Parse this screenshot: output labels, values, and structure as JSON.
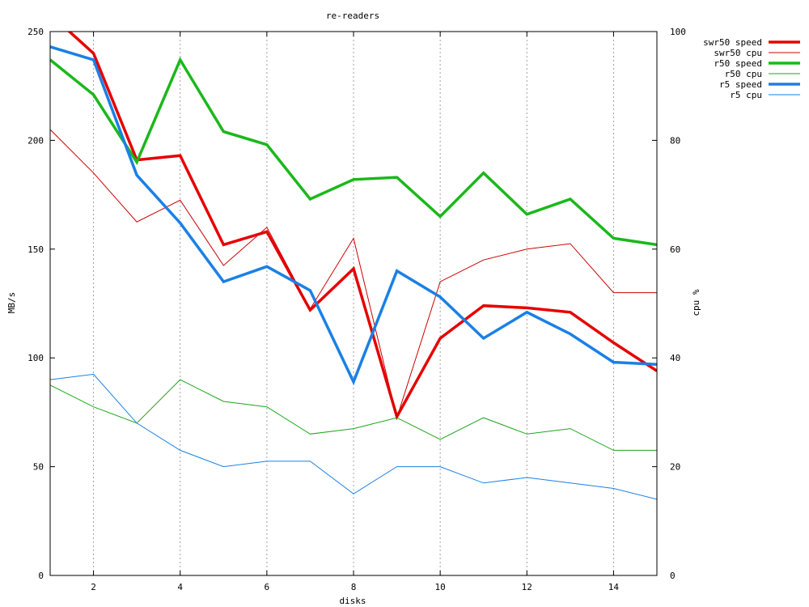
{
  "chart_data": {
    "type": "line",
    "title": "re-readers",
    "xlabel": "disks",
    "ylabel": "MB/s",
    "y2label": "cpu %",
    "xlim": [
      1,
      15
    ],
    "ylim": [
      0,
      250
    ],
    "y2lim": [
      0,
      100
    ],
    "xticks": [
      "2",
      "4",
      "6",
      "8",
      "10",
      "12",
      "14"
    ],
    "yticks": [
      "0",
      "50",
      "100",
      "150",
      "200",
      "250"
    ],
    "y2ticks": [
      "0",
      "20",
      "40",
      "60",
      "80",
      "100"
    ],
    "grid": "vertical dashed at x ticks",
    "legend_position": "top-right outside plot",
    "x": [
      1,
      2,
      3,
      4,
      5,
      6,
      7,
      8,
      9,
      10,
      11,
      12,
      13,
      14,
      15
    ],
    "series": [
      {
        "name": "swr50 speed",
        "axis": "left",
        "color": "#e60000",
        "width": 3.5,
        "values": [
          258,
          240,
          191,
          193,
          152,
          158,
          122,
          141,
          73,
          109,
          124,
          123,
          121,
          107,
          94
        ]
      },
      {
        "name": "swr50 cpu",
        "axis": "right",
        "color": "#cc0000",
        "width": 1,
        "values": [
          82,
          74,
          65,
          69,
          57,
          64,
          49,
          62,
          29,
          54,
          58,
          60,
          61,
          52,
          52
        ]
      },
      {
        "name": "r50 speed",
        "axis": "left",
        "color": "#1ab81a",
        "width": 3.5,
        "values": [
          237,
          221,
          190,
          237,
          204,
          198,
          173,
          182,
          183,
          165,
          185,
          166,
          173,
          155,
          152
        ]
      },
      {
        "name": "r50 cpu",
        "axis": "right",
        "color": "#1aa81a",
        "width": 1,
        "values": [
          35,
          31,
          28,
          36,
          32,
          31,
          26,
          27,
          29,
          25,
          29,
          26,
          27,
          23,
          23
        ]
      },
      {
        "name": "r5 speed",
        "axis": "left",
        "color": "#1a80e6",
        "width": 3.5,
        "values": [
          243,
          237,
          184,
          162,
          135,
          142,
          131,
          89,
          140,
          128,
          109,
          121,
          111,
          98,
          97
        ]
      },
      {
        "name": "r5 cpu",
        "axis": "right",
        "color": "#1a80e6",
        "width": 1,
        "values": [
          36,
          37,
          28,
          23,
          20,
          21,
          21,
          15,
          20,
          20,
          17,
          18,
          17,
          16,
          14
        ]
      }
    ]
  }
}
